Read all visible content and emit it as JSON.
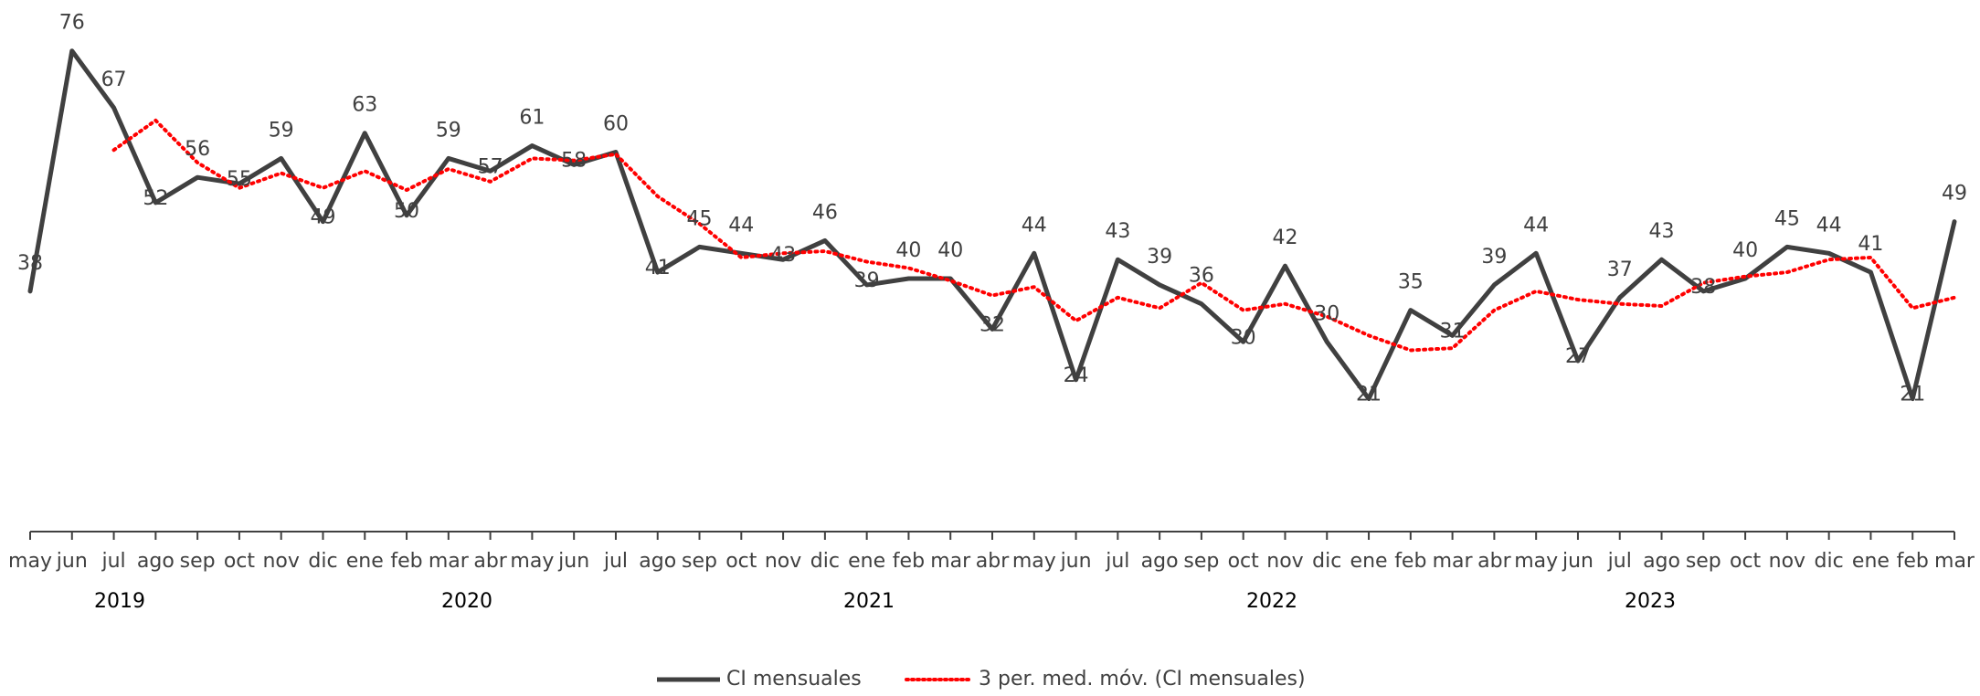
{
  "chart_data": {
    "type": "line",
    "categories": [
      "may",
      "jun",
      "jul",
      "ago",
      "sep",
      "oct",
      "nov",
      "dic",
      "ene",
      "feb",
      "mar",
      "abr",
      "may",
      "jun",
      "jul",
      "ago",
      "sep",
      "oct",
      "nov",
      "dic",
      "ene",
      "feb",
      "mar",
      "abr",
      "may",
      "jun",
      "jul",
      "ago",
      "sep",
      "oct",
      "nov",
      "dic",
      "ene",
      "feb",
      "mar",
      "abr",
      "may",
      "jun",
      "jul",
      "ago",
      "sep",
      "oct",
      "nov",
      "dic",
      "ene",
      "feb",
      "mar"
    ],
    "years": [
      "2019",
      "2020",
      "2021",
      "2022",
      "2023"
    ],
    "series": [
      {
        "name": "CI mensuales",
        "color": "#404040",
        "style": "solid",
        "values": [
          38,
          76,
          67,
          52,
          56,
          55,
          59,
          49,
          63,
          50,
          59,
          57,
          61,
          58,
          60,
          41,
          45,
          44,
          43,
          46,
          39,
          40,
          40,
          32,
          44,
          24,
          43,
          39,
          36,
          30,
          42,
          30,
          21,
          35,
          31,
          39,
          44,
          27,
          37,
          43,
          38,
          40,
          45,
          44,
          41,
          21,
          49
        ]
      },
      {
        "name": "3 per. med. móv. (CI mensuales)",
        "color": "#ff0000",
        "style": "dotted",
        "values": [
          null,
          null,
          60.33,
          65,
          58.33,
          54.33,
          56.67,
          54.33,
          57,
          54,
          57.33,
          55.33,
          59,
          58.67,
          59.67,
          53,
          48.67,
          43.33,
          44,
          44.33,
          42.67,
          41.67,
          39.67,
          37.33,
          38.67,
          33.33,
          37,
          35.33,
          39.33,
          35,
          36,
          34,
          31,
          28.67,
          29,
          35,
          38,
          36.67,
          36,
          35.67,
          39.33,
          40.33,
          41,
          43,
          43.33,
          35.33,
          37
        ]
      }
    ],
    "ylim": [
      0,
      80
    ],
    "grid": false,
    "data_labels": true
  }
}
